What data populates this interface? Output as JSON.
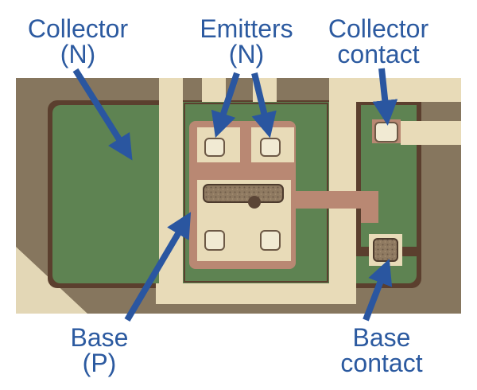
{
  "colors": {
    "label": "#2c5aa0",
    "arrow": "#2a56a0",
    "substrate": "#8a7a62",
    "collector_region": "#5e8352",
    "metal": "#e8dbb8",
    "base_region": "#b98873"
  },
  "labels": {
    "collector": {
      "line1": "Collector",
      "line2": "(N)"
    },
    "emitters": {
      "line1": "Emitters",
      "line2": "(N)"
    },
    "collector_contact": {
      "line1": "Collector",
      "line2": "contact"
    },
    "base": {
      "line1": "Base",
      "line2": "(P)"
    },
    "base_contact": {
      "line1": "Base",
      "line2": "contact"
    }
  }
}
